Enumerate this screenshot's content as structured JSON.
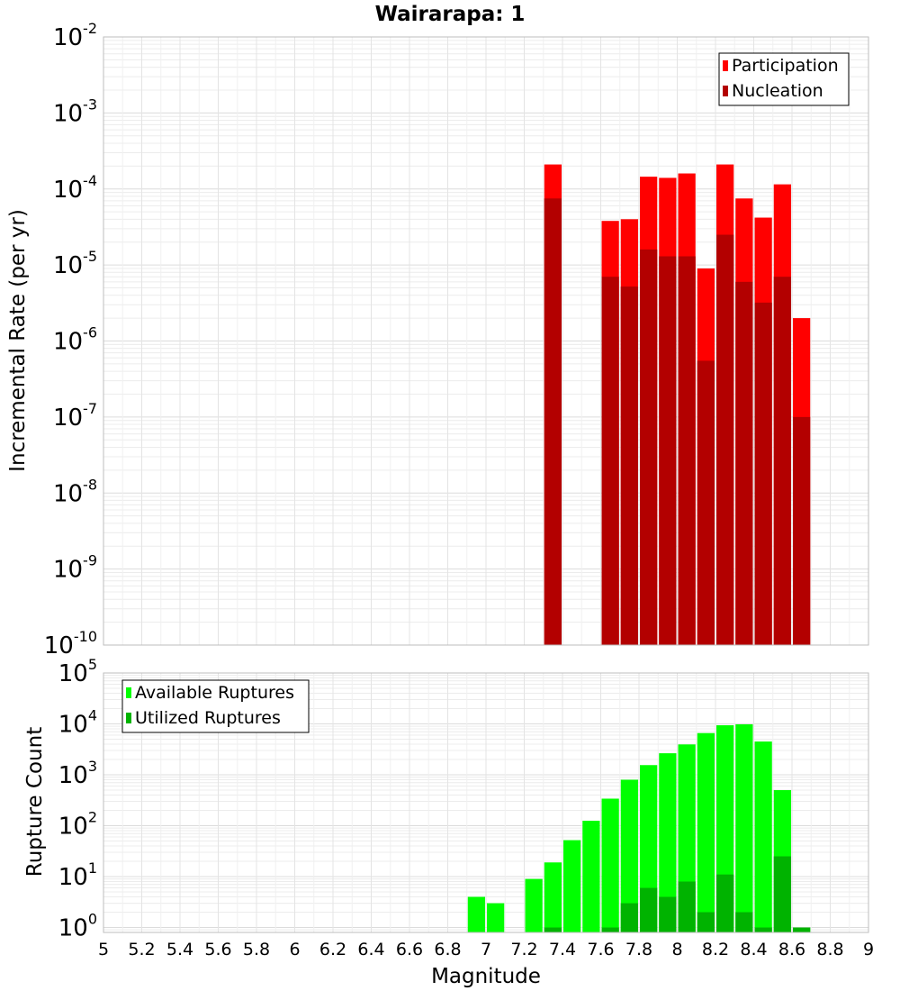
{
  "chart_data": [
    {
      "type": "bar",
      "title": "Wairarapa: 1",
      "ylabel": "Incremental Rate (per yr)",
      "xlabel": "",
      "yscale": "log",
      "ylim": [
        1e-10,
        0.01
      ],
      "xlim": [
        5,
        9
      ],
      "grid": true,
      "legend": "top-right",
      "x": [
        7.35,
        7.65,
        7.75,
        7.85,
        7.95,
        8.05,
        8.15,
        8.25,
        8.35,
        8.45,
        8.55,
        8.65
      ],
      "series": [
        {
          "name": "Participation",
          "color": "#ff0000",
          "values": [
            0.00021,
            3.8e-05,
            4e-05,
            0.000145,
            0.00014,
            0.00016,
            9e-06,
            0.00021,
            7.5e-05,
            4.2e-05,
            0.000115,
            2e-06
          ]
        },
        {
          "name": "Nucleation",
          "color": "#b30000",
          "values": [
            7.5e-05,
            7e-06,
            5.2e-06,
            1.6e-05,
            1.3e-05,
            1.3e-05,
            5.5e-07,
            2.5e-05,
            6e-06,
            3.2e-06,
            7e-06,
            1e-07
          ]
        }
      ],
      "yticks": [
        {
          "base": "10",
          "exp": "-2"
        },
        {
          "base": "10",
          "exp": "-3"
        },
        {
          "base": "10",
          "exp": "-4"
        },
        {
          "base": "10",
          "exp": "-5"
        },
        {
          "base": "10",
          "exp": "-6"
        },
        {
          "base": "10",
          "exp": "-7"
        },
        {
          "base": "10",
          "exp": "-8"
        },
        {
          "base": "10",
          "exp": "-9"
        },
        {
          "base": "10",
          "exp": "-10"
        }
      ]
    },
    {
      "type": "bar",
      "title": "",
      "ylabel": "Rupture Count",
      "xlabel": "Magnitude",
      "yscale": "log",
      "ylim": [
        0.8,
        100000.0
      ],
      "xlim": [
        5,
        9
      ],
      "grid": true,
      "legend": "top-left",
      "x": [
        6.95,
        7.05,
        7.25,
        7.35,
        7.45,
        7.55,
        7.65,
        7.75,
        7.85,
        7.95,
        8.05,
        8.15,
        8.25,
        8.35,
        8.45,
        8.55,
        8.65
      ],
      "series": [
        {
          "name": "Available Ruptures",
          "color": "#00ff00",
          "values": [
            4,
            3,
            9,
            19,
            52,
            125,
            340,
            800,
            1550,
            2650,
            3950,
            6600,
            9400,
            9800,
            4500,
            500,
            1
          ]
        },
        {
          "name": "Utilized Ruptures",
          "color": "#00b300",
          "values": [
            0,
            0,
            0,
            1,
            0,
            0,
            1,
            3,
            6,
            4,
            8,
            2,
            11,
            2,
            1,
            25,
            1
          ]
        }
      ],
      "xticks": [
        "5",
        "5.2",
        "5.4",
        "5.6",
        "5.8",
        "6",
        "6.2",
        "6.4",
        "6.6",
        "6.8",
        "7",
        "7.2",
        "7.4",
        "7.6",
        "7.8",
        "8",
        "8.2",
        "8.4",
        "8.6",
        "8.8",
        "9"
      ],
      "yticks": [
        {
          "base": "10",
          "exp": "5"
        },
        {
          "base": "10",
          "exp": "4"
        },
        {
          "base": "10",
          "exp": "3"
        },
        {
          "base": "10",
          "exp": "2"
        },
        {
          "base": "10",
          "exp": "1"
        },
        {
          "base": "10",
          "exp": "0"
        }
      ]
    }
  ]
}
